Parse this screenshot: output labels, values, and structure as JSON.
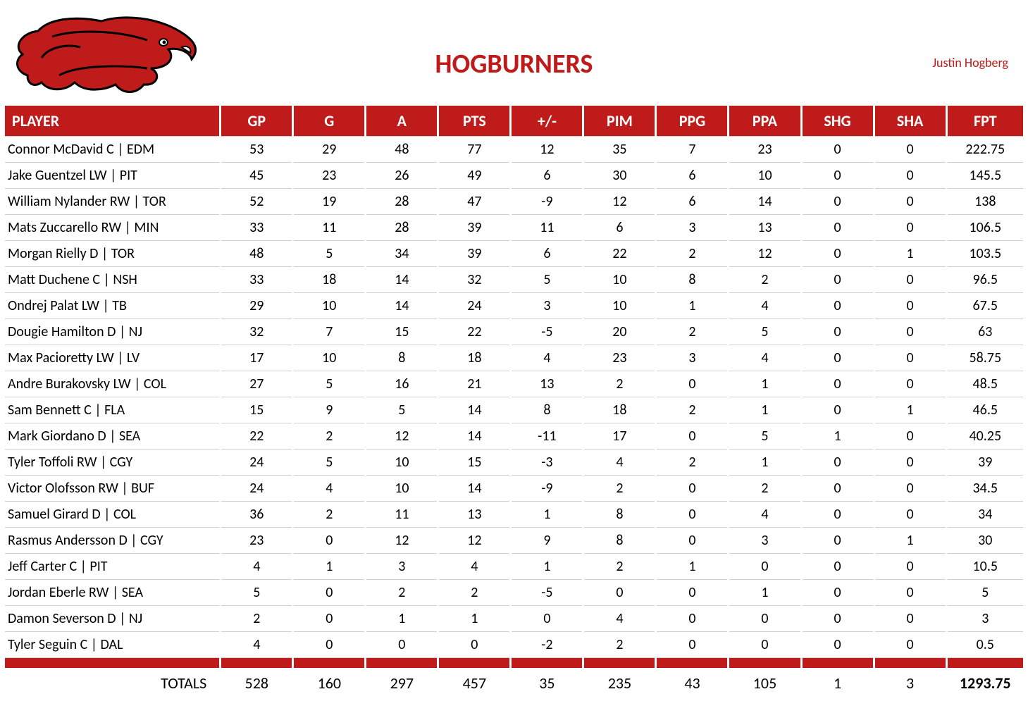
{
  "colors": {
    "accent": "#bf1b1b",
    "text": "#000000",
    "background": "#ffffff",
    "rowline": "#d0d0d0"
  },
  "header": {
    "team_name": "HOGBURNERS",
    "owner": "Justin Hogberg"
  },
  "table": {
    "columns": [
      "PLAYER",
      "GP",
      "G",
      "A",
      "PTS",
      "+/-",
      "PIM",
      "PPG",
      "PPA",
      "SHG",
      "SHA",
      "FPT"
    ],
    "rows": [
      [
        "Connor McDavid C | EDM",
        "53",
        "29",
        "48",
        "77",
        "12",
        "35",
        "7",
        "23",
        "0",
        "0",
        "222.75"
      ],
      [
        "Jake Guentzel LW | PIT",
        "45",
        "23",
        "26",
        "49",
        "6",
        "30",
        "6",
        "10",
        "0",
        "0",
        "145.5"
      ],
      [
        "William Nylander RW | TOR",
        "52",
        "19",
        "28",
        "47",
        "-9",
        "12",
        "6",
        "14",
        "0",
        "0",
        "138"
      ],
      [
        "Mats Zuccarello RW | MIN",
        "33",
        "11",
        "28",
        "39",
        "11",
        "6",
        "3",
        "13",
        "0",
        "0",
        "106.5"
      ],
      [
        "Morgan Rielly D | TOR",
        "48",
        "5",
        "34",
        "39",
        "6",
        "22",
        "2",
        "12",
        "0",
        "1",
        "103.5"
      ],
      [
        "Matt Duchene C | NSH",
        "33",
        "18",
        "14",
        "32",
        "5",
        "10",
        "8",
        "2",
        "0",
        "0",
        "96.5"
      ],
      [
        "Ondrej Palat LW | TB",
        "29",
        "10",
        "14",
        "24",
        "3",
        "10",
        "1",
        "4",
        "0",
        "0",
        "67.5"
      ],
      [
        "Dougie Hamilton D | NJ",
        "32",
        "7",
        "15",
        "22",
        "-5",
        "20",
        "2",
        "5",
        "0",
        "0",
        "63"
      ],
      [
        "Max Pacioretty LW | LV",
        "17",
        "10",
        "8",
        "18",
        "4",
        "23",
        "3",
        "4",
        "0",
        "0",
        "58.75"
      ],
      [
        "Andre Burakovsky LW | COL",
        "27",
        "5",
        "16",
        "21",
        "13",
        "2",
        "0",
        "1",
        "0",
        "0",
        "48.5"
      ],
      [
        "Sam Bennett C | FLA",
        "15",
        "9",
        "5",
        "14",
        "8",
        "18",
        "2",
        "1",
        "0",
        "1",
        "46.5"
      ],
      [
        "Mark Giordano D | SEA",
        "22",
        "2",
        "12",
        "14",
        "-11",
        "17",
        "0",
        "5",
        "1",
        "0",
        "40.25"
      ],
      [
        "Tyler Toffoli RW | CGY",
        "24",
        "5",
        "10",
        "15",
        "-3",
        "4",
        "2",
        "1",
        "0",
        "0",
        "39"
      ],
      [
        "Victor Olofsson RW | BUF",
        "24",
        "4",
        "10",
        "14",
        "-9",
        "2",
        "0",
        "2",
        "0",
        "0",
        "34.5"
      ],
      [
        "Samuel Girard D | COL",
        "36",
        "2",
        "11",
        "13",
        "1",
        "8",
        "0",
        "4",
        "0",
        "0",
        "34"
      ],
      [
        "Rasmus Andersson D | CGY",
        "23",
        "0",
        "12",
        "12",
        "9",
        "8",
        "0",
        "3",
        "0",
        "1",
        "30"
      ],
      [
        "Jeff Carter C | PIT",
        "4",
        "1",
        "3",
        "4",
        "1",
        "2",
        "1",
        "0",
        "0",
        "0",
        "10.5"
      ],
      [
        "Jordan Eberle RW | SEA",
        "5",
        "0",
        "2",
        "2",
        "-5",
        "0",
        "0",
        "1",
        "0",
        "0",
        "5"
      ],
      [
        "Damon Severson D | NJ",
        "2",
        "0",
        "1",
        "1",
        "0",
        "4",
        "0",
        "0",
        "0",
        "0",
        "3"
      ],
      [
        "Tyler Seguin C | DAL",
        "4",
        "0",
        "0",
        "0",
        "-2",
        "2",
        "0",
        "0",
        "0",
        "0",
        "0.5"
      ]
    ],
    "totals_label": "TOTALS",
    "totals": [
      "528",
      "160",
      "297",
      "457",
      "35",
      "235",
      "43",
      "105",
      "1",
      "3",
      "1293.75"
    ]
  }
}
